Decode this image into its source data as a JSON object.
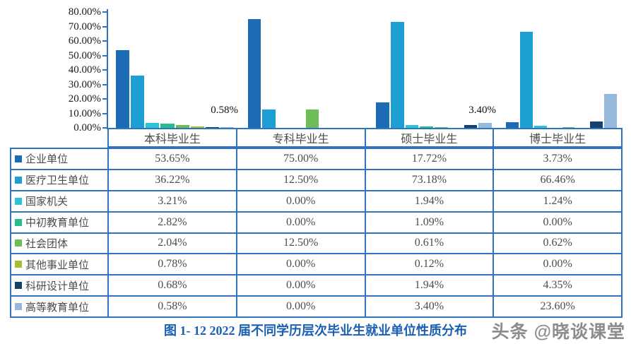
{
  "caption": "图 1- 12  2022 届不同学历层次毕业生就业单位性质分布",
  "watermark": "头条 @晓谈课堂",
  "colors": {
    "table_border": "#2e74c0",
    "axis": "#2e74c0",
    "caption_text": "#1a5fb3"
  },
  "chart_data": {
    "type": "bar",
    "title": "",
    "xlabel": "",
    "ylabel": "",
    "ylim": [
      0,
      80
    ],
    "grid": false,
    "yticks": [
      "80.00%",
      "70.00%",
      "60.00%",
      "50.00%",
      "40.00%",
      "30.00%",
      "20.00%",
      "10.00%",
      "0.00%"
    ],
    "categories": [
      "本科毕业生",
      "专科毕业生",
      "硕士毕业生",
      "博士毕业生"
    ],
    "series": [
      {
        "name": "企业单位",
        "color": "#1b6bb5",
        "values": [
          53.65,
          75.0,
          17.72,
          3.73
        ]
      },
      {
        "name": "医疗卫生单位",
        "color": "#1d9fd4",
        "values": [
          36.22,
          12.5,
          73.18,
          66.46
        ]
      },
      {
        "name": "国家机关",
        "color": "#2bc4d6",
        "values": [
          3.21,
          0.0,
          1.94,
          1.24
        ]
      },
      {
        "name": "中初教育单位",
        "color": "#25bd8b",
        "values": [
          2.82,
          0.0,
          1.09,
          0.0
        ]
      },
      {
        "name": "社会团体",
        "color": "#6cbe54",
        "values": [
          2.04,
          12.5,
          0.61,
          0.62
        ]
      },
      {
        "name": "其他事业单位",
        "color": "#a9be35",
        "values": [
          0.78,
          0.0,
          0.12,
          0.0
        ]
      },
      {
        "name": "科研设计单位",
        "color": "#14426b",
        "values": [
          0.68,
          0.0,
          1.94,
          4.35
        ]
      },
      {
        "name": "高等教育单位",
        "color": "#97badc",
        "values": [
          0.58,
          0.0,
          3.4,
          23.6
        ]
      }
    ],
    "annotations": [
      {
        "group_index": 0,
        "text": "0.58%"
      },
      {
        "group_index": 2,
        "text": "3.40%"
      }
    ],
    "legend_position": "table-left-column"
  }
}
